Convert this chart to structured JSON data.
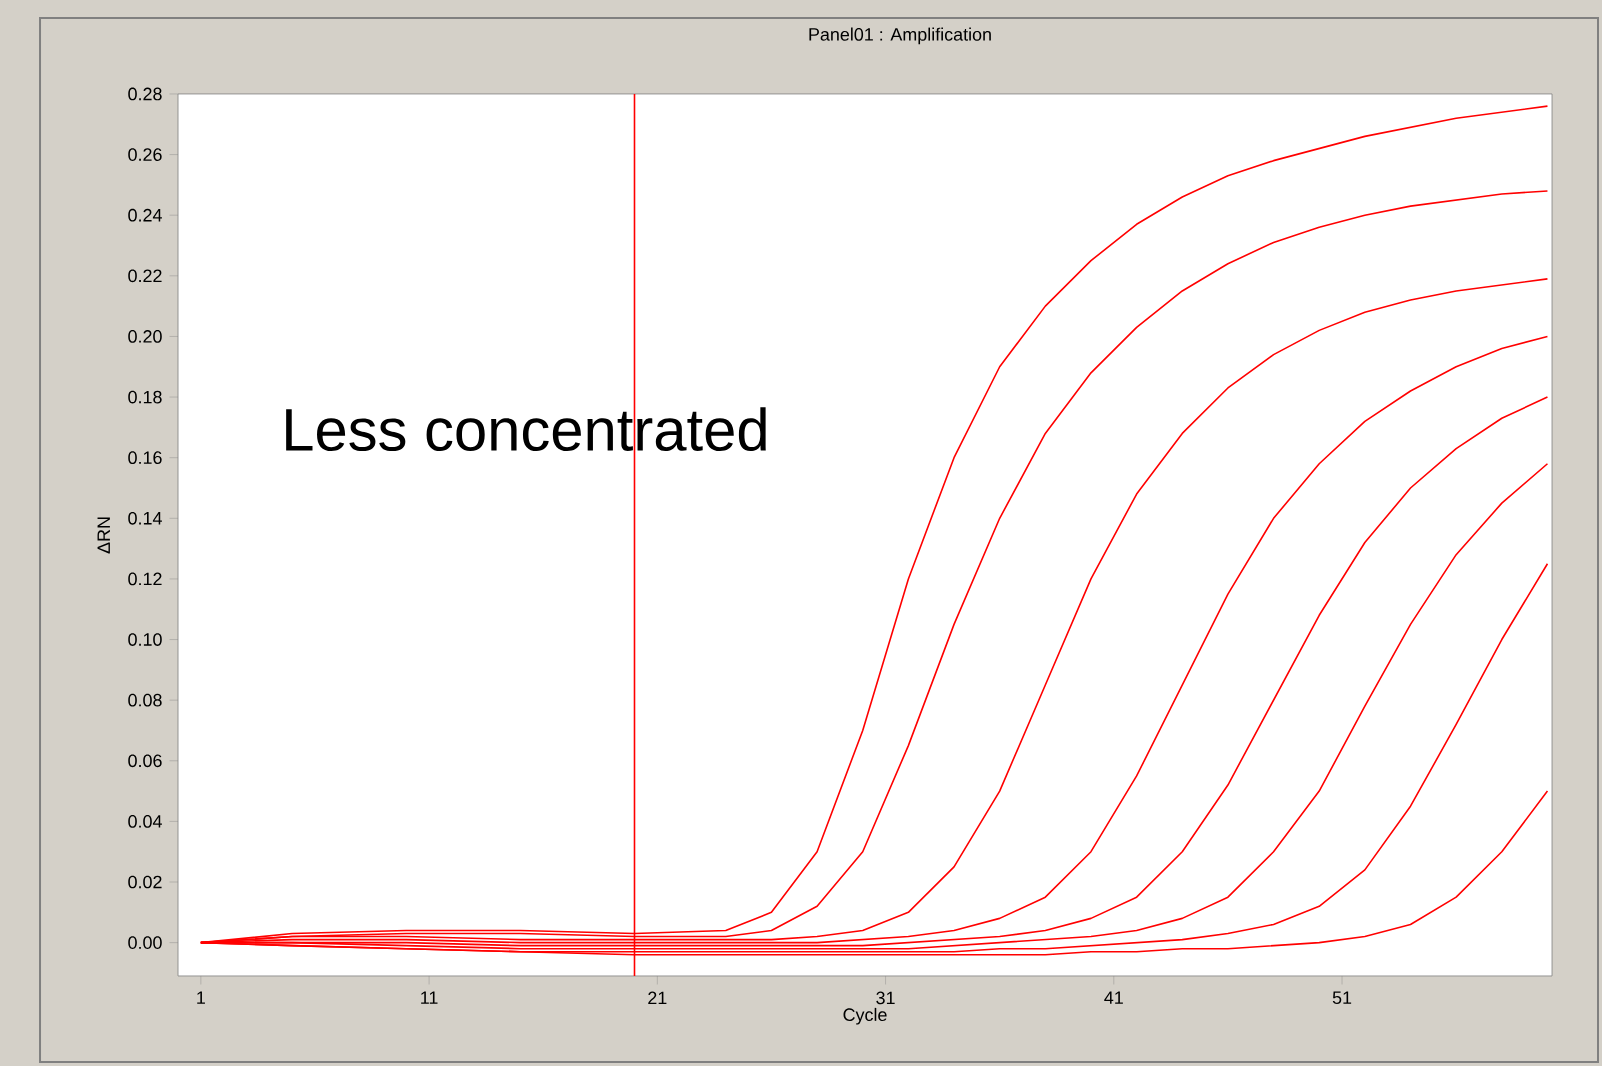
{
  "chart_data": {
    "type": "line",
    "title": "Panel01 : Amplification",
    "xlabel": "Cycle",
    "ylabel": "ΔRN",
    "annotations": [
      "Less concentrated"
    ],
    "x": [
      1,
      5,
      10,
      15,
      20,
      24,
      26,
      28,
      30,
      32,
      34,
      36,
      38,
      40,
      42,
      44,
      46,
      48,
      50,
      52,
      54,
      56,
      58,
      60
    ],
    "series": [
      {
        "color": "#ff0000",
        "values": [
          0,
          0.003,
          0.004,
          0.004,
          0.003,
          0.004,
          0.01,
          0.03,
          0.07,
          0.12,
          0.16,
          0.19,
          0.21,
          0.225,
          0.237,
          0.246,
          0.253,
          0.258,
          0.262,
          0.266,
          0.269,
          0.272,
          0.274,
          0.276
        ]
      },
      {
        "color": "#ff0000",
        "values": [
          0,
          0.002,
          0.003,
          0.003,
          0.002,
          0.002,
          0.004,
          0.012,
          0.03,
          0.065,
          0.105,
          0.14,
          0.168,
          0.188,
          0.203,
          0.215,
          0.224,
          0.231,
          0.236,
          0.24,
          0.243,
          0.245,
          0.247,
          0.248
        ]
      },
      {
        "color": "#ff0000",
        "values": [
          0,
          0.002,
          0.002,
          0.001,
          0.001,
          0.001,
          0.001,
          0.002,
          0.004,
          0.01,
          0.025,
          0.05,
          0.085,
          0.12,
          0.148,
          0.168,
          0.183,
          0.194,
          0.202,
          0.208,
          0.212,
          0.215,
          0.217,
          0.219
        ]
      },
      {
        "color": "#ff0000",
        "values": [
          0,
          0.001,
          0.001,
          0,
          0,
          0,
          0,
          0,
          0.001,
          0.002,
          0.004,
          0.008,
          0.015,
          0.03,
          0.055,
          0.085,
          0.115,
          0.14,
          0.158,
          0.172,
          0.182,
          0.19,
          0.196,
          0.2
        ]
      },
      {
        "color": "#ff0000",
        "values": [
          0,
          0,
          0,
          -0.001,
          -0.001,
          -0.001,
          -0.001,
          -0.001,
          -0.001,
          0,
          0.001,
          0.002,
          0.004,
          0.008,
          0.015,
          0.03,
          0.052,
          0.08,
          0.108,
          0.132,
          0.15,
          0.163,
          0.173,
          0.18
        ]
      },
      {
        "color": "#ff0000",
        "values": [
          0,
          0,
          -0.001,
          -0.002,
          -0.002,
          -0.002,
          -0.002,
          -0.002,
          -0.002,
          -0.002,
          -0.001,
          0,
          0.001,
          0.002,
          0.004,
          0.008,
          0.015,
          0.03,
          0.05,
          0.078,
          0.105,
          0.128,
          0.145,
          0.158
        ]
      },
      {
        "color": "#ff0000",
        "values": [
          0,
          -0.001,
          -0.002,
          -0.003,
          -0.003,
          -0.003,
          -0.003,
          -0.003,
          -0.003,
          -0.003,
          -0.003,
          -0.002,
          -0.002,
          -0.001,
          0,
          0.001,
          0.003,
          0.006,
          0.012,
          0.024,
          0.045,
          0.072,
          0.1,
          0.125
        ]
      },
      {
        "color": "#ff0000",
        "values": [
          0,
          -0.001,
          -0.002,
          -0.003,
          -0.004,
          -0.004,
          -0.004,
          -0.004,
          -0.004,
          -0.004,
          -0.004,
          -0.004,
          -0.004,
          -0.003,
          -0.003,
          -0.002,
          -0.002,
          -0.001,
          0,
          0.002,
          0.006,
          0.015,
          0.03,
          0.05
        ]
      }
    ],
    "xlim": [
      0,
      60.2
    ],
    "ylim": [
      -0.011,
      0.28
    ],
    "xticks": [
      1,
      11,
      21,
      31,
      41,
      51
    ],
    "yticks": [
      {
        "value": 0,
        "label": "0.00"
      },
      {
        "value": 0.02,
        "label": "0.02"
      },
      {
        "value": 0.04,
        "label": "0.04"
      },
      {
        "value": 0.06,
        "label": "0.06"
      },
      {
        "value": 0.08,
        "label": "0.08"
      },
      {
        "value": 0.1,
        "label": "0.10"
      },
      {
        "value": 0.12,
        "label": "0.12"
      },
      {
        "value": 0.14,
        "label": "0.14"
      },
      {
        "value": 0.16,
        "label": "0.16"
      },
      {
        "value": 0.18,
        "label": "0.18"
      },
      {
        "value": 0.2,
        "label": "0.20"
      },
      {
        "value": 0.22,
        "label": "0.22"
      },
      {
        "value": 0.24,
        "label": "0.24"
      },
      {
        "value": 0.26,
        "label": "0.26"
      },
      {
        "value": 0.28,
        "label": "0.28"
      }
    ],
    "ref_lines": [
      {
        "axis": "x",
        "value": 20,
        "color": "#ff0000"
      }
    ],
    "grid": false,
    "marker": "none",
    "line_style": "solid"
  }
}
